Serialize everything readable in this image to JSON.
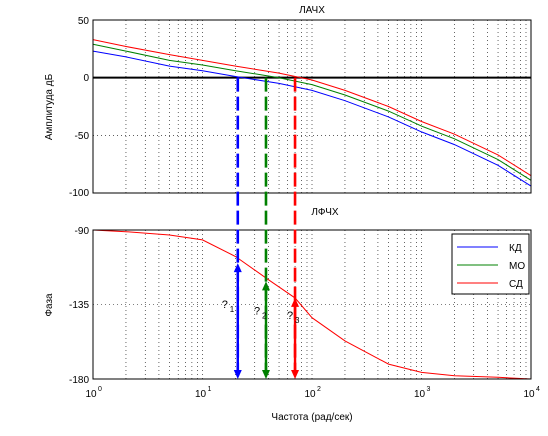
{
  "colors": {
    "kd": "#0000ff",
    "mo": "#008000",
    "sd": "#ff0000",
    "axis": "#000000",
    "grid": "#000000"
  },
  "chart_data": [
    {
      "type": "line",
      "title": "ЛАЧХ",
      "ylabel": "Амплитуда дБ",
      "xscale": "log",
      "xlim": [
        1,
        10000
      ],
      "ylim": [
        -100,
        50
      ],
      "yticks": [
        "50",
        "0",
        "-50",
        "-100"
      ],
      "grid": "dotted",
      "reference_line_y": 0,
      "series": [
        {
          "name": "КД",
          "x": [
            1,
            2,
            5,
            10,
            20,
            50,
            100,
            200,
            500,
            1000,
            2000,
            5000,
            10000
          ],
          "values": [
            23,
            18,
            10,
            6,
            1,
            -5,
            -11,
            -20,
            -34,
            -47,
            -58,
            -76,
            -94
          ]
        },
        {
          "name": "МО",
          "x": [
            1,
            2,
            5,
            10,
            20,
            50,
            100,
            200,
            500,
            1000,
            2000,
            5000,
            10000
          ],
          "values": [
            29,
            23,
            15,
            11,
            6,
            0,
            -6,
            -15,
            -29,
            -42,
            -53,
            -71,
            -89
          ]
        },
        {
          "name": "СД",
          "x": [
            1,
            2,
            5,
            10,
            20,
            50,
            100,
            200,
            500,
            1000,
            2000,
            5000,
            10000
          ],
          "values": [
            33,
            27,
            20,
            15,
            10,
            4,
            -2,
            -11,
            -25,
            -38,
            -49,
            -67,
            -85
          ]
        }
      ],
      "crossover_markers": [
        {
          "series": "КД",
          "x": 21
        },
        {
          "series": "МО",
          "x": 38
        },
        {
          "series": "СД",
          "x": 70
        }
      ]
    },
    {
      "type": "line",
      "title": "ЛФЧХ",
      "xlabel": "Частота (рад/сек)",
      "ylabel": "Фаза",
      "xscale": "log",
      "xlim": [
        1,
        10000
      ],
      "xticks": [
        "10^0",
        "10^1",
        "10^2",
        "10^3",
        "10^4"
      ],
      "ylim": [
        -180,
        -90
      ],
      "yticks": [
        "-90",
        "-135",
        "-180"
      ],
      "grid": "dotted",
      "legend": {
        "position": "top-right",
        "entries": [
          "КД",
          "МО",
          "СД"
        ]
      },
      "series": [
        {
          "name": "СД",
          "x": [
            1,
            2,
            5,
            10,
            20,
            40,
            70,
            100,
            200,
            500,
            1000,
            2000,
            5000,
            10000
          ],
          "values": [
            -90,
            -91,
            -93,
            -96,
            -106,
            -120,
            -131,
            -143,
            -157,
            -171,
            -176,
            -178,
            -179,
            -180
          ]
        }
      ],
      "phase_markers": [
        {
          "series": "КД",
          "x": 21,
          "y": -110,
          "label": "?",
          "sub": "1"
        },
        {
          "series": "МО",
          "x": 38,
          "y": -121,
          "label": "?",
          "sub": "2"
        },
        {
          "series": "СД",
          "x": 70,
          "y": -131,
          "label": "?",
          "sub": "3"
        }
      ]
    }
  ]
}
